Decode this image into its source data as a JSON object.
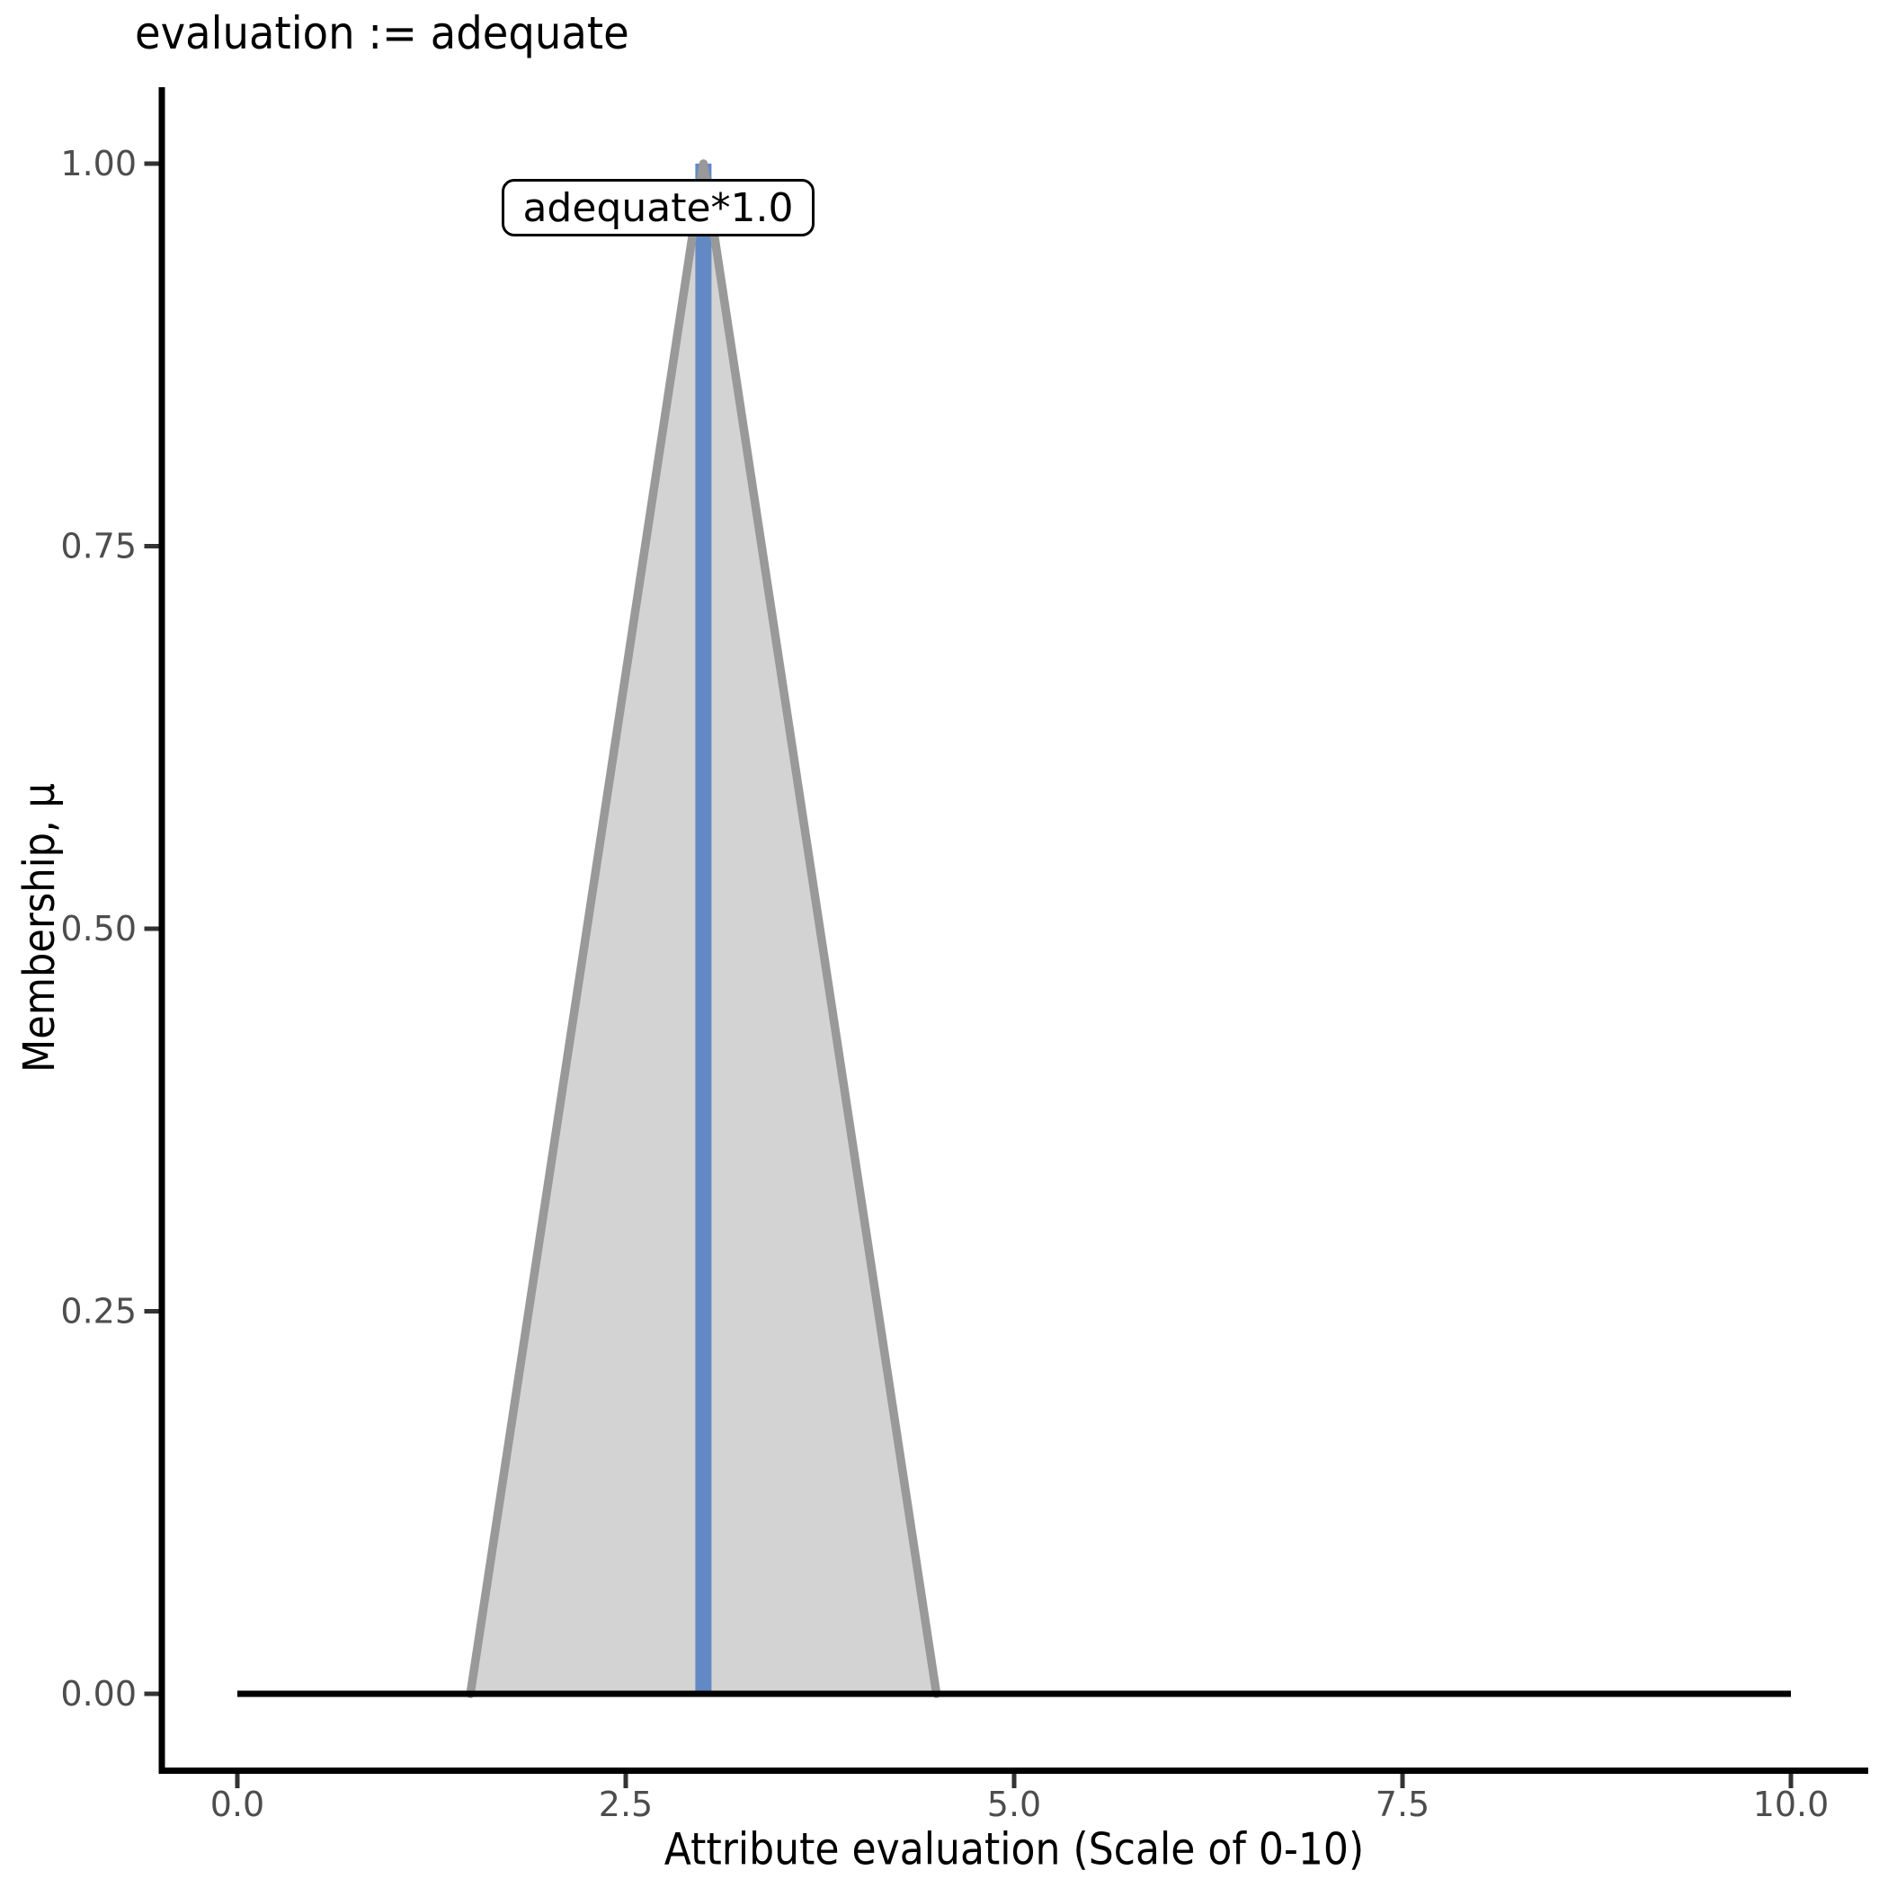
{
  "chart_data": {
    "type": "area",
    "title": "evaluation := adequate",
    "xlabel": "Attribute evaluation (Scale of 0-10)",
    "ylabel": "Membership, μ",
    "xlim": [
      0,
      10
    ],
    "ylim": [
      0,
      1
    ],
    "grid": false,
    "legend": "none",
    "x_ticks": [
      0.0,
      2.5,
      5.0,
      7.5,
      10.0
    ],
    "x_tick_labels": [
      "0.0",
      "2.5",
      "5.0",
      "7.5",
      "10.0"
    ],
    "y_ticks": [
      0.0,
      0.25,
      0.5,
      0.75,
      1.0
    ],
    "y_tick_labels": [
      "0.00",
      "0.25",
      "0.50",
      "0.75",
      "1.00"
    ],
    "series": [
      {
        "name": "zero-membership-baseline",
        "kind": "line",
        "points": [
          [
            0,
            0
          ],
          [
            10,
            0
          ]
        ],
        "color": "#000000"
      },
      {
        "name": "adequate-membership-triangle",
        "kind": "area",
        "points": [
          [
            1.5,
            0
          ],
          [
            3,
            1
          ],
          [
            4.5,
            0
          ]
        ],
        "fill_color": "#d3d3d3",
        "stroke_color": "#999999"
      },
      {
        "name": "peak-indicator",
        "kind": "vline",
        "x": 3,
        "y_from": 0,
        "y_to": 1,
        "color": "#6289c4"
      }
    ],
    "annotation": {
      "text": "adequate*1.0",
      "at_x": 3,
      "at_y": 1
    },
    "colors": {
      "axis": "#000000",
      "tick_mark": "#333333",
      "tick_label": "#4d4d4d",
      "title": "#000000",
      "background": "#ffffff",
      "triangle_fill": "#d3d3d3",
      "triangle_outline": "#999999",
      "peak_line": "#6289c4"
    }
  }
}
